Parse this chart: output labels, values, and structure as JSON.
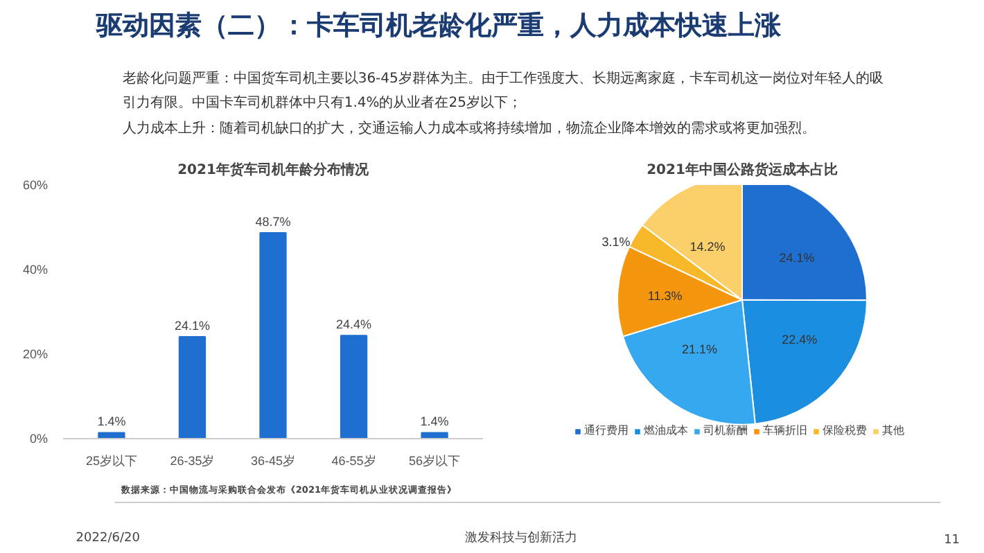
{
  "chart_data": [
    {
      "type": "other",
      "title": "驱动因素（二）：卡车司机老龄化严重，人力成本快速上涨",
      "annotations": [
        "老龄化问题严重：中国货车司机主要以36-45岁群体为主。由于工作强度大、长期远离家庭，卡车司机这一岗位对年轻人的吸引力有限。中国卡车司机群体中只有1.4%的从业者在25岁以下；",
        "人力成本上升：随着司机缺口的扩大，交通运输人力成本或将持续增加，物流企业降本增效的需求或将更加强烈。"
      ]
    },
    {
      "type": "bar",
      "title": "2021年货车司机年龄分布情况",
      "categories": [
        "25岁以下",
        "26-35岁",
        "36-45岁",
        "46-55岁",
        "56岁以下"
      ],
      "values": [
        1.4,
        24.1,
        48.7,
        24.4,
        1.4
      ],
      "value_labels": [
        "1.4%",
        "24.1%",
        "48.7%",
        "24.4%",
        "1.4%"
      ],
      "color": "#1f6fd1",
      "ylim": [
        0,
        60
      ],
      "yticks": [
        {
          "value": 0,
          "label": "0%"
        },
        {
          "value": 20,
          "label": "20%"
        },
        {
          "value": 40,
          "label": "40%"
        },
        {
          "value": 60,
          "label": "60%"
        }
      ],
      "grid": false
    },
    {
      "type": "pie",
      "title": "2021年中国公路货运成本占比",
      "categories": [
        "通行费用",
        "燃油成本",
        "司机薪酬",
        "车辆折旧",
        "保险税费",
        "其他"
      ],
      "values": [
        24.1,
        22.4,
        21.1,
        11.3,
        3.1,
        14.2
      ],
      "value_labels": [
        "24.1%",
        "22.4%",
        "21.1%",
        "11.3%",
        "3.1%",
        "14.2%"
      ],
      "colors": [
        "#1f6fd1",
        "#1c8ee0",
        "#35a8ef",
        "#f5960f",
        "#f7b92a",
        "#fbd06a"
      ],
      "legend": "bottom"
    },
    {
      "type": "other",
      "annotations": [
        "数据来源：中国物流与采购联合会发布《2021年货车司机从业状况调查报告》",
        "2022/6/20",
        "激发科技与创新活力",
        "11"
      ]
    }
  ]
}
